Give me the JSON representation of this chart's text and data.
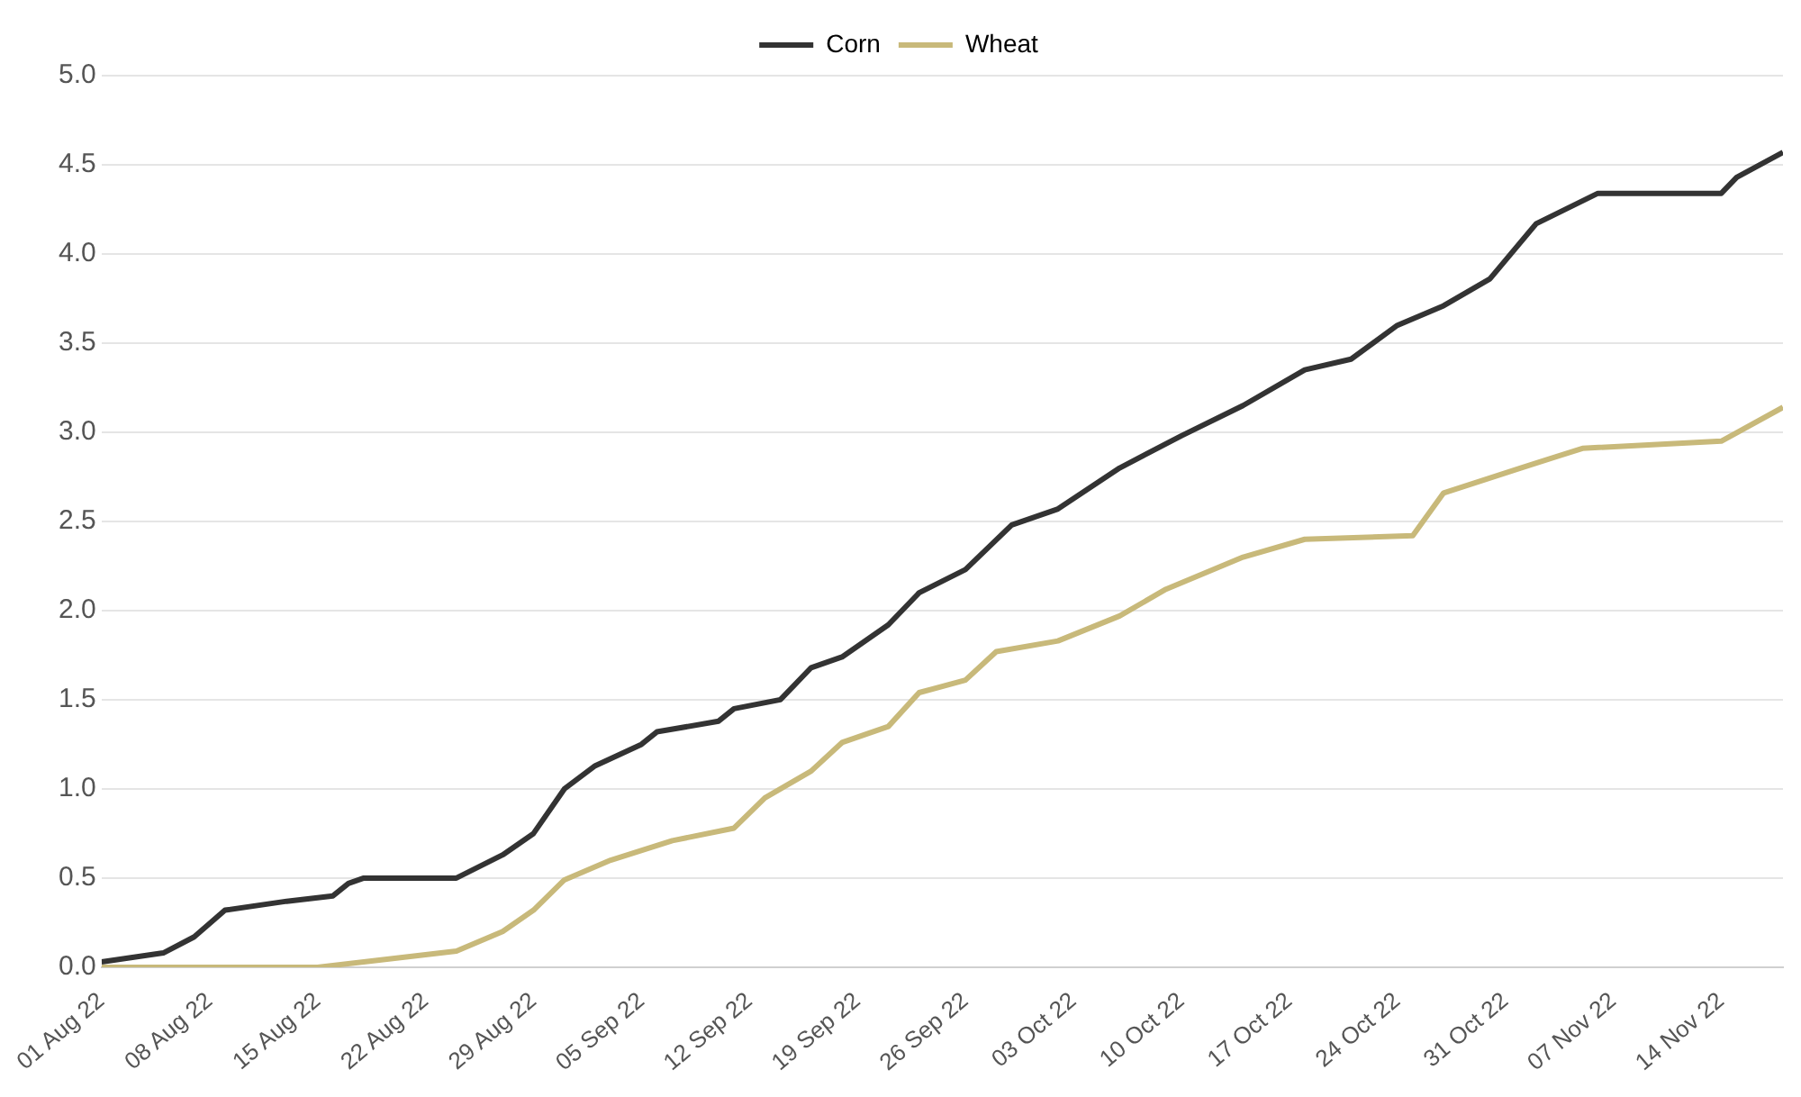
{
  "chart_data": {
    "type": "line",
    "legend": "top",
    "grid": "y",
    "marker": "none",
    "line_style": "solid",
    "xlim": [
      "--08-01",
      "--11-18"
    ],
    "xticks": [
      {
        "value": "--08-01",
        "label": "01 Aug 22"
      },
      {
        "value": "--08-08",
        "label": "08 Aug 22"
      },
      {
        "value": "--08-15",
        "label": "15 Aug 22"
      },
      {
        "value": "--08-22",
        "label": "22 Aug 22"
      },
      {
        "value": "--08-29",
        "label": "29 Aug 22"
      },
      {
        "value": "--09-05",
        "label": "05 Sep 22"
      },
      {
        "value": "--09-12",
        "label": "12 Sep 22"
      },
      {
        "value": "--09-19",
        "label": "19 Sep 22"
      },
      {
        "value": "--09-26",
        "label": "26 Sep 22"
      },
      {
        "value": "--10-03",
        "label": "03 Oct 22"
      },
      {
        "value": "--10-10",
        "label": "10 Oct 22"
      },
      {
        "value": "--10-17",
        "label": "17 Oct 22"
      },
      {
        "value": "--10-24",
        "label": "24 Oct 22"
      },
      {
        "value": "--10-31",
        "label": "31 Oct 22"
      },
      {
        "value": "--11-07",
        "label": "07 Nov 22"
      },
      {
        "value": "--11-14",
        "label": "14 Nov 22"
      }
    ],
    "ylim": [
      0,
      5
    ],
    "yticks": [
      {
        "value": 0,
        "label": "0.0"
      },
      {
        "value": 0.5,
        "label": "0.5"
      },
      {
        "value": 1,
        "label": "1.0"
      },
      {
        "value": 1.5,
        "label": "1.5"
      },
      {
        "value": 2,
        "label": "2.0"
      },
      {
        "value": 2.5,
        "label": "2.5"
      },
      {
        "value": 3,
        "label": "3.0"
      },
      {
        "value": 3.5,
        "label": "3.5"
      },
      {
        "value": 4,
        "label": "4.0"
      },
      {
        "value": 4.5,
        "label": "4.5"
      },
      {
        "value": 5,
        "label": "5.0"
      }
    ],
    "series": [
      {
        "name": "Corn",
        "color": "#333333",
        "x": [
          "--08-01",
          "--08-05",
          "--08-07",
          "--08-09",
          "--08-13",
          "--08-16",
          "--08-17",
          "--08-18",
          "--08-24",
          "--08-27",
          "--08-29",
          "--08-31",
          "--09-02",
          "--09-05",
          "--09-06",
          "--09-10",
          "--09-11",
          "--09-14",
          "--09-16",
          "--09-18",
          "--09-21",
          "--09-23",
          "--09-26",
          "--09-29",
          "--10-02",
          "--10-06",
          "--10-10",
          "--10-14",
          "--10-18",
          "--10-21",
          "--10-24",
          "--10-27",
          "--10-30",
          "--11-02",
          "--11-06",
          "--11-14",
          "--11-15",
          "--11-18"
        ],
        "values": [
          0.03,
          0.08,
          0.17,
          0.32,
          0.37,
          0.4,
          0.47,
          0.5,
          0.5,
          0.63,
          0.75,
          1.0,
          1.13,
          1.25,
          1.32,
          1.38,
          1.45,
          1.5,
          1.68,
          1.74,
          1.92,
          2.1,
          2.23,
          2.48,
          2.57,
          2.8,
          2.98,
          3.15,
          3.35,
          3.41,
          3.6,
          3.71,
          3.86,
          4.17,
          4.34,
          4.34,
          4.43,
          4.57
        ]
      },
      {
        "name": "Wheat",
        "color": "#c8b97a",
        "x": [
          "--08-01",
          "--08-15",
          "--08-19",
          "--08-24",
          "--08-27",
          "--08-29",
          "--08-31",
          "--09-03",
          "--09-07",
          "--09-11",
          "--09-13",
          "--09-16",
          "--09-18",
          "--09-21",
          "--09-23",
          "--09-26",
          "--09-28",
          "--10-02",
          "--10-06",
          "--10-09",
          "--10-14",
          "--10-18",
          "--10-25",
          "--10-27",
          "--11-01",
          "--11-05",
          "--11-14",
          "--11-18"
        ],
        "values": [
          0,
          0,
          0.04,
          0.09,
          0.2,
          0.32,
          0.49,
          0.6,
          0.71,
          0.78,
          0.95,
          1.1,
          1.26,
          1.35,
          1.54,
          1.61,
          1.77,
          1.83,
          1.97,
          2.12,
          2.3,
          2.4,
          2.42,
          2.66,
          2.8,
          2.91,
          2.95,
          3.14
        ]
      }
    ]
  }
}
